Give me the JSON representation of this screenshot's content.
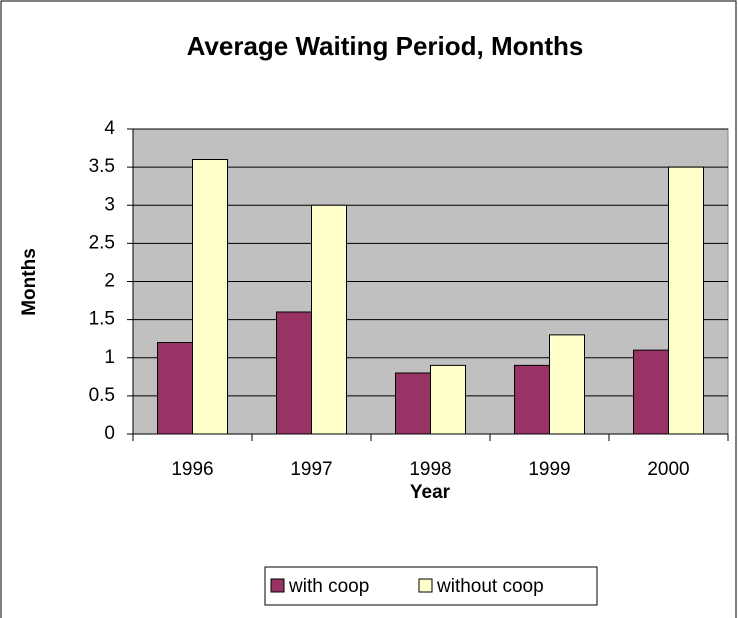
{
  "chart_data": {
    "type": "bar",
    "title": "Average Waiting Period, Months",
    "x_label": "Year",
    "y_label": "Months",
    "categories": [
      "1996",
      "1997",
      "1998",
      "1999",
      "2000"
    ],
    "series": [
      {
        "name": "with coop",
        "color": "#993366",
        "values": [
          1.2,
          1.6,
          0.8,
          0.9,
          1.1
        ]
      },
      {
        "name": "without coop",
        "color": "#ffffcc",
        "values": [
          3.6,
          3.0,
          0.9,
          1.3,
          3.5
        ]
      }
    ],
    "ylim": [
      0,
      4
    ],
    "yticks": [
      0,
      0.5,
      1,
      1.5,
      2,
      2.5,
      3,
      3.5,
      4
    ],
    "grid": true,
    "legend": "bottom",
    "plot_background": "#c0c0c0"
  }
}
